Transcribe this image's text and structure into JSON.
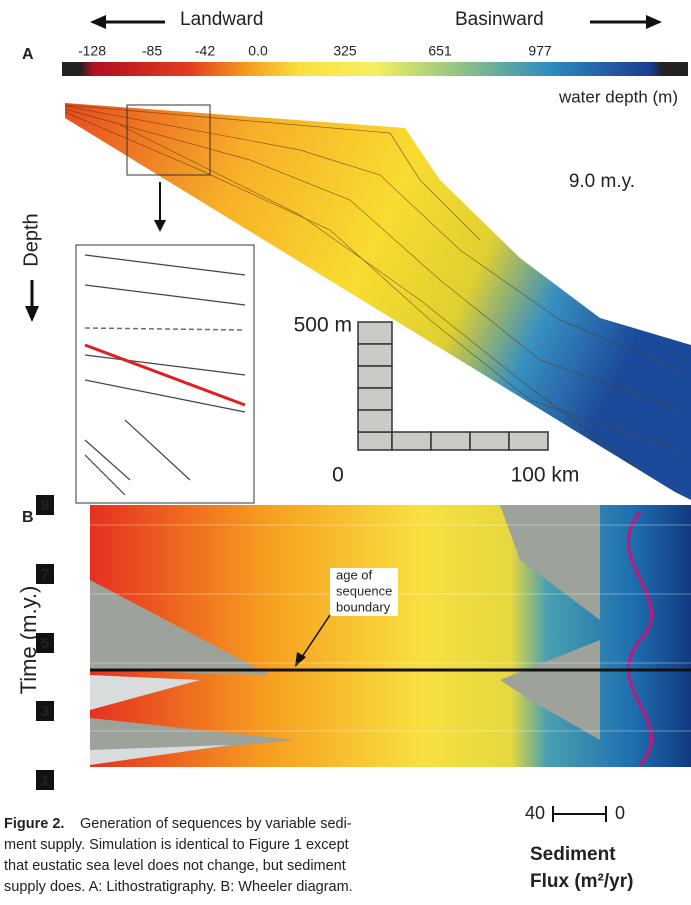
{
  "header": {
    "landward": "Landward",
    "basinward": "Basinward"
  },
  "panel_a": {
    "label": "A",
    "colorbar": {
      "ticks": [
        "-128",
        "-85",
        "-42",
        "0.0",
        "325",
        "651",
        "977"
      ],
      "title": "water depth (m)"
    },
    "age": "9.0 m.y.",
    "axis": "Depth",
    "scale": {
      "vertical": "500 m",
      "origin": "0",
      "horizontal": "100 km"
    }
  },
  "panel_b": {
    "label": "B",
    "axis": "Time (m.y.)",
    "times": [
      "9",
      "7",
      "5",
      "3",
      "1"
    ],
    "annotation": [
      "age of",
      "sequence",
      "boundary"
    ],
    "flux_scale": {
      "left": "40",
      "right": "0"
    },
    "flux_title": [
      "Sediment",
      "Flux (m²/yr)"
    ]
  },
  "caption": {
    "label": "Figure 2.",
    "lines": [
      "Generation of sequences by variable sedi-",
      "ment supply. Simulation is identical to Figure 1 except",
      "that eustatic sea level does not change, but sediment",
      "supply does. A: Lithostratigraphy. B: Wheeler diagram."
    ]
  }
}
